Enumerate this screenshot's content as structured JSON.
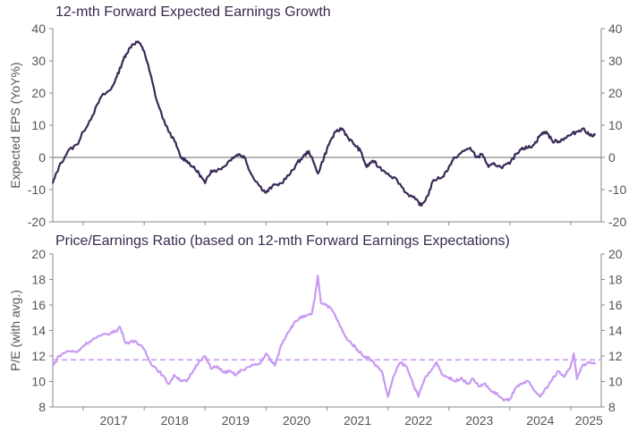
{
  "chart_data": [
    {
      "type": "line",
      "title": "12-mth Forward Expected Earnings Growth",
      "ylabel": "Expected EPS (YoY%)",
      "xlabel": "",
      "ylim": [
        -20,
        40
      ],
      "y_ticks": [
        "40",
        "30",
        "20",
        "10",
        "0",
        "-10",
        "-20"
      ],
      "zero_line": 0,
      "colors": {
        "series": "#3b2a58",
        "zero": "#888888",
        "axis": "#888888"
      },
      "series": [
        {
          "x": [
            2016.5,
            2016.6,
            2016.75,
            2016.9,
            2017.0,
            2017.15,
            2017.3,
            2017.45,
            2017.55,
            2017.65,
            2017.7,
            2017.8,
            2017.9,
            2018.0,
            2018.1,
            2018.2,
            2018.35,
            2018.5,
            2018.6,
            2018.7,
            2018.8,
            2018.9,
            2019.0,
            2019.1,
            2019.2,
            2019.3,
            2019.45,
            2019.55,
            2019.65,
            2019.75,
            2019.9,
            2020.0,
            2020.1,
            2020.25,
            2020.4,
            2020.5,
            2020.6,
            2020.7,
            2020.85,
            2020.95,
            2021.05,
            2021.15,
            2021.25,
            2021.35,
            2021.45,
            2021.55,
            2021.65,
            2021.75,
            2021.85,
            2022.0,
            2022.15,
            2022.3,
            2022.45,
            2022.55,
            2022.65,
            2022.75,
            2022.9,
            2023.0,
            2023.1,
            2023.25,
            2023.35,
            2023.45,
            2023.55,
            2023.65,
            2023.75,
            2023.85,
            2024.0,
            2024.1,
            2024.2,
            2024.3,
            2024.4,
            2024.5,
            2024.6,
            2024.7,
            2024.8,
            2024.9,
            2025.0,
            2025.1,
            2025.2,
            2025.3,
            2025.4
          ],
          "values": [
            -8,
            -3,
            2,
            4,
            8,
            13,
            19,
            21,
            25,
            30,
            32,
            35,
            36,
            33,
            26,
            18,
            10,
            5,
            0,
            -1,
            -3,
            -5,
            -8,
            -4,
            -4,
            -3,
            0,
            1,
            0,
            -5,
            -9,
            -11,
            -9,
            -8,
            -5,
            -2,
            0,
            2,
            -5,
            0,
            5,
            8,
            9,
            6,
            4,
            2,
            -3,
            -1,
            -3,
            -5,
            -7,
            -11,
            -13,
            -15,
            -12,
            -7,
            -6,
            -3,
            0,
            2,
            3,
            0,
            1,
            -3,
            -2,
            -3,
            -2,
            1,
            3,
            3,
            4,
            7,
            8,
            5,
            5,
            6,
            7,
            8,
            9,
            7,
            7
          ]
        }
      ]
    },
    {
      "type": "line",
      "title": "Price/Earnings Ratio (based on 12-mth Forward Earnings Expectations)",
      "ylabel": "P/E (with avg.)",
      "xlabel": "",
      "ylim": [
        8,
        20
      ],
      "y_ticks": [
        "20",
        "18",
        "16",
        "14",
        "12",
        "10",
        "8"
      ],
      "average": 11.7,
      "colors": {
        "series": "#c89af3",
        "average": "#c89af3",
        "axis": "#888888"
      },
      "series": [
        {
          "x": [
            2016.5,
            2016.6,
            2016.75,
            2016.9,
            2017.0,
            2017.15,
            2017.3,
            2017.45,
            2017.55,
            2017.6,
            2017.7,
            2017.85,
            2018.0,
            2018.1,
            2018.2,
            2018.3,
            2018.4,
            2018.5,
            2018.6,
            2018.7,
            2018.8,
            2018.9,
            2019.0,
            2019.1,
            2019.2,
            2019.3,
            2019.4,
            2019.5,
            2019.6,
            2019.75,
            2019.9,
            2020.0,
            2020.1,
            2020.15,
            2020.25,
            2020.35,
            2020.45,
            2020.55,
            2020.65,
            2020.75,
            2020.8,
            2020.85,
            2020.9,
            2021.0,
            2021.1,
            2021.2,
            2021.3,
            2021.4,
            2021.5,
            2021.6,
            2021.7,
            2021.8,
            2021.9,
            2022.0,
            2022.1,
            2022.2,
            2022.3,
            2022.4,
            2022.5,
            2022.6,
            2022.7,
            2022.8,
            2022.9,
            2023.0,
            2023.1,
            2023.2,
            2023.3,
            2023.4,
            2023.5,
            2023.6,
            2023.7,
            2023.8,
            2023.9,
            2024.0,
            2024.1,
            2024.2,
            2024.3,
            2024.4,
            2024.5,
            2024.6,
            2024.7,
            2024.8,
            2024.9,
            2025.0,
            2025.05,
            2025.1,
            2025.2,
            2025.3,
            2025.4
          ],
          "values": [
            11.2,
            12.0,
            12.4,
            12.3,
            12.8,
            13.3,
            13.6,
            13.8,
            14.0,
            14.3,
            13.0,
            13.2,
            12.5,
            11.5,
            11.0,
            10.5,
            9.8,
            10.5,
            10.1,
            10.0,
            10.8,
            11.6,
            12.0,
            11.0,
            11.2,
            10.7,
            10.8,
            10.5,
            10.9,
            11.2,
            11.4,
            12.2,
            11.5,
            11.3,
            12.9,
            13.8,
            14.5,
            15.0,
            15.1,
            15.3,
            16.5,
            18.3,
            16.2,
            16.0,
            15.5,
            14.5,
            13.5,
            13.0,
            12.5,
            12.0,
            11.8,
            11.3,
            10.8,
            8.8,
            10.5,
            11.5,
            11.2,
            10.0,
            8.8,
            10.2,
            10.8,
            11.5,
            10.5,
            10.3,
            10.0,
            10.3,
            9.8,
            10.2,
            9.6,
            9.8,
            9.2,
            9.0,
            8.5,
            8.6,
            9.5,
            9.8,
            10.0,
            9.3,
            8.8,
            9.5,
            10.2,
            10.8,
            10.4,
            11.2,
            12.2,
            10.2,
            11.3,
            11.5,
            11.4
          ]
        }
      ]
    }
  ],
  "x_axis": {
    "ticks": [
      "2017",
      "2018",
      "2019",
      "2020",
      "2021",
      "2022",
      "2023",
      "2024",
      "2025"
    ],
    "range": [
      2016.5,
      2025.5
    ]
  }
}
